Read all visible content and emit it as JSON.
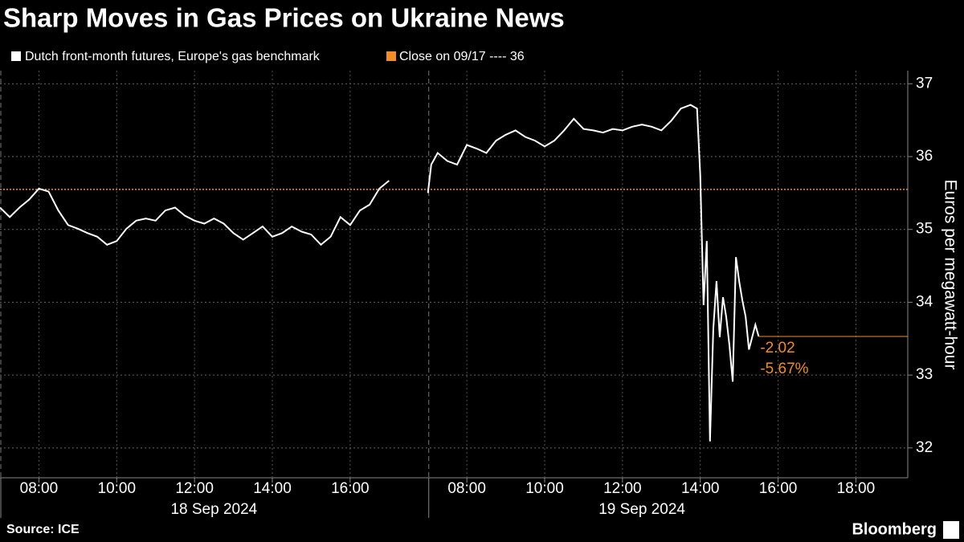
{
  "chart_data": {
    "type": "line",
    "title": "Sharp Moves in Gas Prices on Ukraine News",
    "y_axis_label": "Euros per megawatt-hour",
    "source": "Source: ICE",
    "brand": "Bloomberg",
    "ylim": [
      31.59,
      37.18
    ],
    "yticks": [
      32,
      33,
      34,
      35,
      36,
      37
    ],
    "grid": true,
    "panels": [
      {
        "label": "18 Sep 2024",
        "xlim": [
          "2024-09-18 07:00",
          "2024-09-18 18:00"
        ],
        "xticks": [
          {
            "value": "2024-09-18 08:00",
            "label": "08:00"
          },
          {
            "value": "2024-09-18 10:00",
            "label": "10:00"
          },
          {
            "value": "2024-09-18 12:00",
            "label": "12:00"
          },
          {
            "value": "2024-09-18 14:00",
            "label": "14:00"
          },
          {
            "value": "2024-09-18 16:00",
            "label": "16:00"
          }
        ]
      },
      {
        "label": "19 Sep 2024",
        "xlim": [
          "2024-09-19 07:00",
          "2024-09-19 19:20"
        ],
        "xticks": [
          {
            "value": "2024-09-19 08:00",
            "label": "08:00"
          },
          {
            "value": "2024-09-19 10:00",
            "label": "10:00"
          },
          {
            "value": "2024-09-19 12:00",
            "label": "12:00"
          },
          {
            "value": "2024-09-19 14:00",
            "label": "14:00"
          },
          {
            "value": "2024-09-19 16:00",
            "label": "16:00"
          },
          {
            "value": "2024-09-19 18:00",
            "label": "18:00"
          }
        ]
      }
    ],
    "series": [
      {
        "name": "Dutch front-month futures, Europe's gas benchmark",
        "color": "#ffffff",
        "x": [
          "2024-09-18 07:00",
          "2024-09-18 07:15",
          "2024-09-18 07:30",
          "2024-09-18 07:45",
          "2024-09-18 08:00",
          "2024-09-18 08:15",
          "2024-09-18 08:30",
          "2024-09-18 08:45",
          "2024-09-18 09:00",
          "2024-09-18 09:15",
          "2024-09-18 09:30",
          "2024-09-18 09:45",
          "2024-09-18 10:00",
          "2024-09-18 10:15",
          "2024-09-18 10:30",
          "2024-09-18 10:45",
          "2024-09-18 11:00",
          "2024-09-18 11:15",
          "2024-09-18 11:30",
          "2024-09-18 11:45",
          "2024-09-18 12:00",
          "2024-09-18 12:15",
          "2024-09-18 12:30",
          "2024-09-18 12:45",
          "2024-09-18 13:00",
          "2024-09-18 13:15",
          "2024-09-18 13:30",
          "2024-09-18 13:45",
          "2024-09-18 14:00",
          "2024-09-18 14:15",
          "2024-09-18 14:30",
          "2024-09-18 14:45",
          "2024-09-18 15:00",
          "2024-09-18 15:15",
          "2024-09-18 15:30",
          "2024-09-18 15:45",
          "2024-09-18 16:00",
          "2024-09-18 16:15",
          "2024-09-18 16:30",
          "2024-09-18 16:45",
          "2024-09-18 17:00",
          "2024-09-19 07:00",
          "2024-09-19 07:05",
          "2024-09-19 07:15",
          "2024-09-19 07:30",
          "2024-09-19 07:45",
          "2024-09-19 08:00",
          "2024-09-19 08:15",
          "2024-09-19 08:30",
          "2024-09-19 08:45",
          "2024-09-19 09:00",
          "2024-09-19 09:15",
          "2024-09-19 09:30",
          "2024-09-19 09:45",
          "2024-09-19 10:00",
          "2024-09-19 10:15",
          "2024-09-19 10:30",
          "2024-09-19 10:45",
          "2024-09-19 11:00",
          "2024-09-19 11:15",
          "2024-09-19 11:30",
          "2024-09-19 11:45",
          "2024-09-19 12:00",
          "2024-09-19 12:15",
          "2024-09-19 12:30",
          "2024-09-19 12:45",
          "2024-09-19 13:00",
          "2024-09-19 13:15",
          "2024-09-19 13:30",
          "2024-09-19 13:45",
          "2024-09-19 13:55",
          "2024-09-19 14:00",
          "2024-09-19 14:05",
          "2024-09-19 14:10",
          "2024-09-19 14:15",
          "2024-09-19 14:20",
          "2024-09-19 14:25",
          "2024-09-19 14:30",
          "2024-09-19 14:35",
          "2024-09-19 14:40",
          "2024-09-19 14:45",
          "2024-09-19 14:50",
          "2024-09-19 14:55",
          "2024-09-19 15:00",
          "2024-09-19 15:05",
          "2024-09-19 15:10",
          "2024-09-19 15:15",
          "2024-09-19 15:20",
          "2024-09-19 15:25",
          "2024-09-19 15:30"
        ],
        "values": [
          35.3,
          35.17,
          35.3,
          35.41,
          35.56,
          35.52,
          35.26,
          35.06,
          35.01,
          34.95,
          34.9,
          34.79,
          34.84,
          35.01,
          35.12,
          35.15,
          35.12,
          35.26,
          35.3,
          35.19,
          35.12,
          35.08,
          35.15,
          35.08,
          34.95,
          34.86,
          34.95,
          35.04,
          34.9,
          34.95,
          35.04,
          34.97,
          34.93,
          34.79,
          34.9,
          35.17,
          35.06,
          35.26,
          35.34,
          35.56,
          35.67,
          35.5,
          35.89,
          36.05,
          35.94,
          35.89,
          36.16,
          36.11,
          36.05,
          36.22,
          36.3,
          36.36,
          36.27,
          36.22,
          36.14,
          36.22,
          36.36,
          36.52,
          36.38,
          36.36,
          36.33,
          36.38,
          36.36,
          36.41,
          36.44,
          36.41,
          36.36,
          36.49,
          36.66,
          36.71,
          36.66,
          35.74,
          33.96,
          34.84,
          32.09,
          33.63,
          34.29,
          33.52,
          34.07,
          33.8,
          33.41,
          32.91,
          34.62,
          34.29,
          34.02,
          33.8,
          33.35,
          33.52,
          33.69,
          33.53
        ]
      }
    ],
    "reference": {
      "name": "Close on 09/17 ---- 36",
      "value": 35.55,
      "color": "#f28c28"
    },
    "annotations": [
      "-2.02",
      "-5.67%"
    ]
  }
}
